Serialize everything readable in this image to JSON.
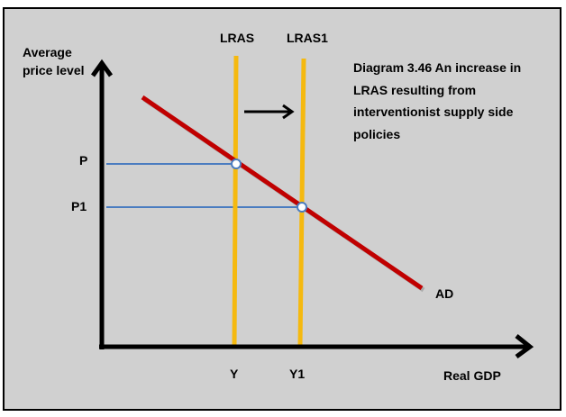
{
  "caption": "Diagram 3.46   An increase in LRAS resulting from interventionist supply side policies",
  "axes": {
    "y_label": "Average price level",
    "x_label": "Real GDP"
  },
  "curves": {
    "lras": "LRAS",
    "lras1": "LRAS1",
    "ad": "AD"
  },
  "price_levels": {
    "p": "P",
    "p1": "P1"
  },
  "output_levels": {
    "y": "Y",
    "y1": "Y1"
  },
  "colors": {
    "background": "#d0d0d0",
    "lras": "#f5b90f",
    "ad": "#c00000",
    "guide": "#4a7cc0",
    "axis": "#000000"
  }
}
